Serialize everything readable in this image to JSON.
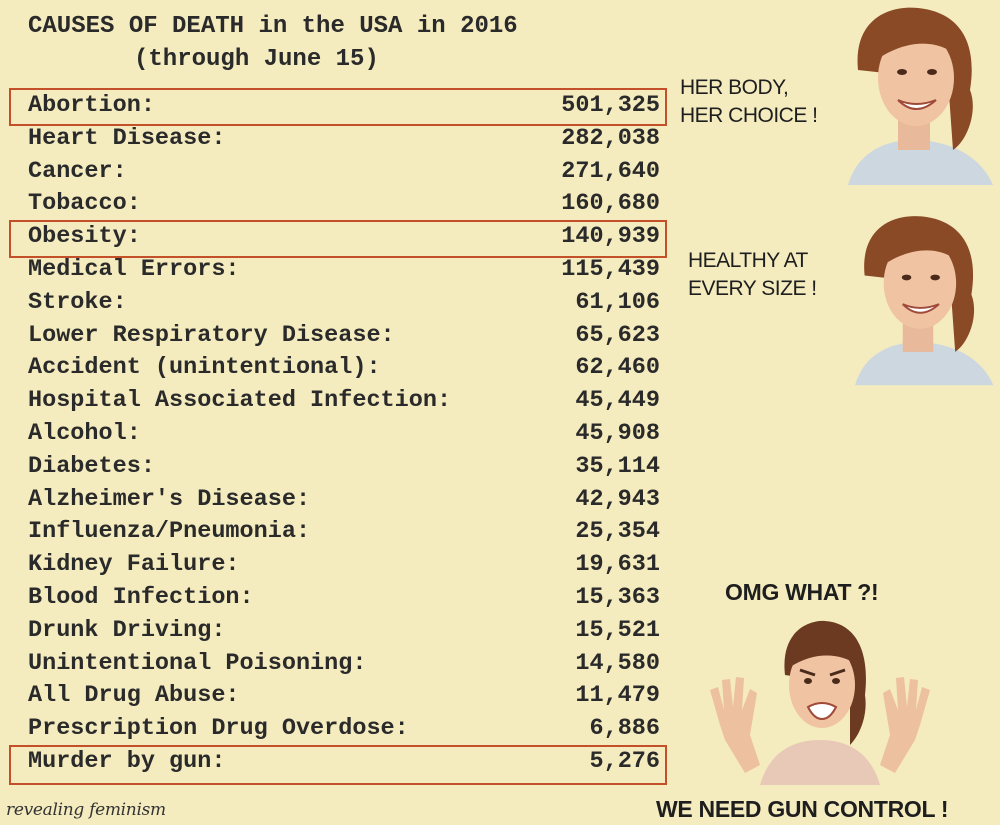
{
  "title": {
    "line1": "CAUSES OF DEATH in the USA in 2016",
    "line2": "(through June 15)"
  },
  "rows": [
    {
      "cause": "Abortion:",
      "count": "501,325"
    },
    {
      "cause": "Heart Disease:",
      "count": "282,038"
    },
    {
      "cause": "Cancer:",
      "count": "271,640"
    },
    {
      "cause": "Tobacco:",
      "count": "160,680"
    },
    {
      "cause": "Obesity:",
      "count": "140,939"
    },
    {
      "cause": "Medical Errors:",
      "count": "115,439"
    },
    {
      "cause": "Stroke:",
      "count": "61,106"
    },
    {
      "cause": "Lower Respiratory Disease:",
      "count": "65,623"
    },
    {
      "cause": "Accident (unintentional):",
      "count": "62,460"
    },
    {
      "cause": "Hospital Associated Infection:",
      "count": "45,449"
    },
    {
      "cause": "Alcohol:",
      "count": "45,908"
    },
    {
      "cause": "Diabetes:",
      "count": "35,114"
    },
    {
      "cause": "Alzheimer's Disease:",
      "count": "42,943"
    },
    {
      "cause": "Influenza/Pneumonia:",
      "count": "25,354"
    },
    {
      "cause": "Kidney Failure:",
      "count": "19,631"
    },
    {
      "cause": "Blood Infection:",
      "count": "15,363"
    },
    {
      "cause": "Drunk Driving:",
      "count": "15,521"
    },
    {
      "cause": "Unintentional Poisoning:",
      "count": "14,580"
    },
    {
      "cause": "All Drug Abuse:",
      "count": "11,479"
    },
    {
      "cause": "Prescription Drug Overdose:",
      "count": "6,886"
    },
    {
      "cause": "Murder by gun:",
      "count": "5,276"
    }
  ],
  "highlighted_rows": [
    "Abortion:",
    "Obesity:",
    "Murder by gun:"
  ],
  "highlight_color": "#c4502a",
  "captions": {
    "abortion_line1": "HER BODY,",
    "abortion_line2": "HER CHOICE !",
    "obesity_line1": "HEALTHY AT",
    "obesity_line2": "EVERY SIZE !",
    "shock": "OMG WHAT ?!",
    "conclusion": "WE NEED GUN CONTROL !"
  },
  "watermark": "revealing feminism",
  "images": [
    "smiling-woman-photo",
    "smiling-woman-photo",
    "shocked-woman-photo"
  ]
}
